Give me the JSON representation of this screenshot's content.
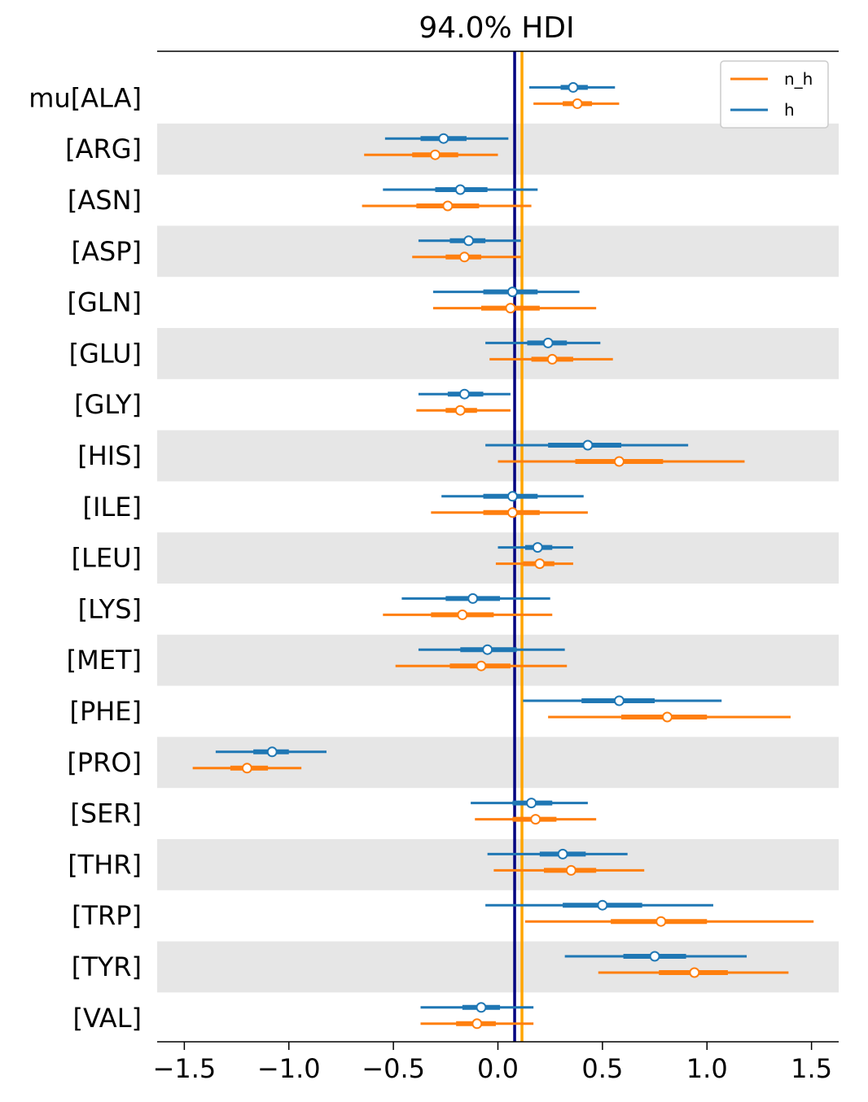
{
  "chart_data": {
    "type": "forest",
    "title": "94.0% HDI",
    "xlim": [
      -1.63,
      1.63
    ],
    "xticks": [
      -1.5,
      -1.0,
      -0.5,
      0.0,
      0.5,
      1.0,
      1.5
    ],
    "xtick_labels": [
      "−1.5",
      "−1.0",
      "−0.5",
      "0.0",
      "0.5",
      "1.0",
      "1.5"
    ],
    "categories": [
      "mu[ALA]",
      "[ARG]",
      "[ASN]",
      "[ASP]",
      "[GLN]",
      "[GLU]",
      "[GLY]",
      "[HIS]",
      "[ILE]",
      "[LEU]",
      "[LYS]",
      "[MET]",
      "[PHE]",
      "[PRO]",
      "[SER]",
      "[THR]",
      "[TRP]",
      "[TYR]",
      "[VAL]"
    ],
    "reference_lines": [
      {
        "x": 0.08,
        "color": "#000080"
      },
      {
        "x": 0.115,
        "color": "#FFA500"
      }
    ],
    "legend": {
      "position": "top-right",
      "entries": [
        "n_h",
        "h"
      ]
    },
    "shaded_rows": "alternate",
    "series": [
      {
        "name": "h",
        "color": "#1f77b4",
        "points": [
          [
            0.15,
            0.3,
            0.36,
            0.43,
            0.56
          ],
          [
            -0.54,
            -0.37,
            -0.26,
            -0.15,
            0.05
          ],
          [
            -0.55,
            -0.3,
            -0.18,
            -0.05,
            0.19
          ],
          [
            -0.38,
            -0.23,
            -0.14,
            -0.06,
            0.11
          ],
          [
            -0.31,
            -0.07,
            0.07,
            0.19,
            0.39
          ],
          [
            -0.06,
            0.14,
            0.24,
            0.33,
            0.49
          ],
          [
            -0.38,
            -0.24,
            -0.16,
            -0.07,
            0.06
          ],
          [
            -0.06,
            0.24,
            0.43,
            0.59,
            0.91
          ],
          [
            -0.27,
            -0.07,
            0.07,
            0.19,
            0.41
          ],
          [
            0.0,
            0.13,
            0.19,
            0.26,
            0.36
          ],
          [
            -0.46,
            -0.25,
            -0.12,
            0.01,
            0.25
          ],
          [
            -0.38,
            -0.18,
            -0.05,
            0.09,
            0.32
          ],
          [
            0.12,
            0.4,
            0.58,
            0.75,
            1.07
          ],
          [
            -1.35,
            -1.17,
            -1.08,
            -1.0,
            -0.82
          ],
          [
            -0.13,
            0.07,
            0.16,
            0.26,
            0.43
          ],
          [
            -0.05,
            0.2,
            0.31,
            0.42,
            0.62
          ],
          [
            -0.06,
            0.31,
            0.5,
            0.69,
            1.03
          ],
          [
            0.32,
            0.6,
            0.75,
            0.9,
            1.19
          ],
          [
            -0.37,
            -0.17,
            -0.08,
            0.01,
            0.17
          ]
        ]
      },
      {
        "name": "n_h",
        "color": "#ff7f0e",
        "points": [
          [
            0.17,
            0.31,
            0.38,
            0.45,
            0.58
          ],
          [
            -0.64,
            -0.41,
            -0.3,
            -0.19,
            -0.0
          ],
          [
            -0.65,
            -0.39,
            -0.24,
            -0.09,
            0.16
          ],
          [
            -0.41,
            -0.25,
            -0.16,
            -0.08,
            0.11
          ],
          [
            -0.31,
            -0.08,
            0.06,
            0.2,
            0.47
          ],
          [
            -0.04,
            0.16,
            0.26,
            0.36,
            0.55
          ],
          [
            -0.39,
            -0.25,
            -0.18,
            -0.1,
            0.06
          ],
          [
            0.0,
            0.37,
            0.58,
            0.79,
            1.18
          ],
          [
            -0.32,
            -0.07,
            0.07,
            0.2,
            0.43
          ],
          [
            -0.01,
            0.12,
            0.2,
            0.27,
            0.36
          ],
          [
            -0.55,
            -0.32,
            -0.17,
            -0.02,
            0.26
          ],
          [
            -0.49,
            -0.23,
            -0.08,
            0.06,
            0.33
          ],
          [
            0.24,
            0.59,
            0.81,
            1.0,
            1.4
          ],
          [
            -1.46,
            -1.28,
            -1.2,
            -1.1,
            -0.94
          ],
          [
            -0.11,
            0.07,
            0.18,
            0.28,
            0.47
          ],
          [
            -0.02,
            0.22,
            0.35,
            0.47,
            0.7
          ],
          [
            0.13,
            0.54,
            0.78,
            1.0,
            1.51
          ],
          [
            0.48,
            0.77,
            0.94,
            1.1,
            1.39
          ],
          [
            -0.37,
            -0.2,
            -0.1,
            -0.01,
            0.17
          ]
        ]
      }
    ]
  }
}
